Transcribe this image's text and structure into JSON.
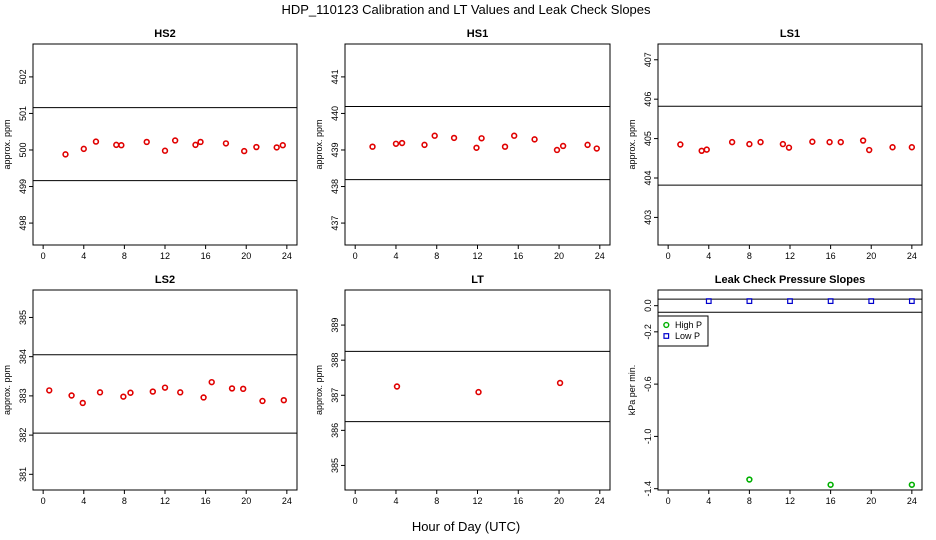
{
  "title": "HDP_110123  Calibration and LT Values and Leak Check Slopes",
  "xlabel": "Hour of Day (UTC)",
  "chart_data": [
    {
      "type": "scatter",
      "title": "HS2",
      "ylabel": "approx. ppm",
      "xlim": [
        -1,
        25
      ],
      "ylim": [
        497.4,
        502.9
      ],
      "xticks": [
        "0",
        "4",
        "8",
        "12",
        "16",
        "20",
        "24"
      ],
      "yticks": [
        "498",
        "499",
        "500",
        "501",
        "502"
      ],
      "hlines": [
        501.16,
        499.16
      ],
      "color": "#e00000",
      "x": [
        2.2,
        4.0,
        5.2,
        7.2,
        7.7,
        10.2,
        12.0,
        13.0,
        15.0,
        15.5,
        18.0,
        19.8,
        21.0,
        23.0,
        23.6
      ],
      "y": [
        499.88,
        500.03,
        500.23,
        500.14,
        500.13,
        500.22,
        499.98,
        500.26,
        500.14,
        500.22,
        500.18,
        499.97,
        500.08,
        500.07,
        500.13
      ]
    },
    {
      "type": "scatter",
      "title": "HS1",
      "ylabel": "approx. ppm",
      "xlim": [
        -1,
        25
      ],
      "ylim": [
        436.4,
        441.9
      ],
      "xticks": [
        "0",
        "4",
        "8",
        "12",
        "16",
        "20",
        "24"
      ],
      "yticks": [
        "437",
        "438",
        "439",
        "440",
        "441"
      ],
      "hlines": [
        440.19,
        438.19
      ],
      "color": "#e00000",
      "x": [
        1.7,
        4.0,
        4.6,
        6.8,
        7.8,
        9.7,
        11.9,
        12.4,
        14.7,
        15.6,
        17.6,
        19.8,
        20.4,
        22.8,
        23.7
      ],
      "y": [
        439.09,
        439.17,
        439.19,
        439.14,
        439.39,
        439.33,
        439.06,
        439.32,
        439.09,
        439.39,
        439.29,
        439.0,
        439.11,
        439.14,
        439.04
      ]
    },
    {
      "type": "scatter",
      "title": "LS1",
      "ylabel": "approx. ppm",
      "xlim": [
        -1,
        25
      ],
      "ylim": [
        402.3,
        407.4
      ],
      "xticks": [
        "0",
        "4",
        "8",
        "12",
        "16",
        "20",
        "24"
      ],
      "yticks": [
        "403",
        "404",
        "405",
        "406",
        "407"
      ],
      "hlines": [
        405.82,
        403.82
      ],
      "color": "#e00000",
      "x": [
        1.2,
        3.3,
        3.8,
        6.3,
        8.0,
        9.1,
        11.3,
        11.9,
        14.2,
        15.9,
        17.0,
        19.2,
        19.8,
        22.1,
        24.0
      ],
      "y": [
        404.85,
        404.69,
        404.72,
        404.91,
        404.86,
        404.91,
        404.86,
        404.77,
        404.92,
        404.91,
        404.91,
        404.95,
        404.71,
        404.78,
        404.78
      ]
    },
    {
      "type": "scatter",
      "title": "LS2",
      "ylabel": "approx. ppm",
      "xlim": [
        -1,
        25
      ],
      "ylim": [
        380.6,
        385.7
      ],
      "xticks": [
        "0",
        "4",
        "8",
        "12",
        "16",
        "20",
        "24"
      ],
      "yticks": [
        "381",
        "382",
        "383",
        "384",
        "385"
      ],
      "hlines": [
        384.05,
        382.05
      ],
      "color": "#e00000",
      "x": [
        0.6,
        2.8,
        3.9,
        5.6,
        7.9,
        8.6,
        10.8,
        12.0,
        13.5,
        15.8,
        16.6,
        18.6,
        19.7,
        21.6,
        23.7
      ],
      "y": [
        383.14,
        383.01,
        382.82,
        383.09,
        382.98,
        383.08,
        383.11,
        383.21,
        383.09,
        382.96,
        383.35,
        383.19,
        383.18,
        382.87,
        382.89
      ]
    },
    {
      "type": "scatter",
      "title": "LT",
      "ylabel": "approx. ppm",
      "xlim": [
        -1,
        25
      ],
      "ylim": [
        384.3,
        390.0
      ],
      "xticks": [
        "0",
        "4",
        "8",
        "12",
        "16",
        "20",
        "24"
      ],
      "yticks": [
        "385",
        "386",
        "387",
        "388",
        "389"
      ],
      "hlines": [
        388.25,
        386.25
      ],
      "color": "#e00000",
      "x": [
        4.1,
        12.1,
        20.1
      ],
      "y": [
        387.25,
        387.09,
        387.35
      ]
    },
    {
      "type": "scatter",
      "title": "Leak Check Pressure Slopes",
      "ylabel": "kPa per min.",
      "xlim": [
        -1,
        25
      ],
      "ylim": [
        -1.41,
        0.12
      ],
      "xticks": [
        "0",
        "4",
        "8",
        "12",
        "16",
        "20",
        "24"
      ],
      "yticks": [
        "-1.4",
        "-1.0",
        "-0.6",
        "-0.2",
        "0.0"
      ],
      "ytick_values": [
        -1.4,
        -1.0,
        -0.6,
        -0.2,
        0.0
      ],
      "hlines": [
        0.05,
        -0.05
      ],
      "legend": {
        "position": "top-left",
        "entries": [
          "High P",
          "Low P"
        ],
        "colors": [
          "#00b000",
          "#0000cc"
        ],
        "markers": [
          "circle",
          "square"
        ]
      },
      "series": [
        {
          "name": "High P",
          "marker": "circle",
          "color": "#00b000",
          "x": [
            8.0,
            16.0,
            24.0
          ],
          "y": [
            -1.33,
            -1.37,
            -1.37
          ]
        },
        {
          "name": "Low P",
          "marker": "square",
          "color": "#0000cc",
          "x": [
            4.0,
            8.0,
            12.0,
            16.0,
            20.0,
            24.0
          ],
          "y": [
            0.035,
            0.035,
            0.035,
            0.035,
            0.035,
            0.035
          ]
        }
      ]
    }
  ]
}
